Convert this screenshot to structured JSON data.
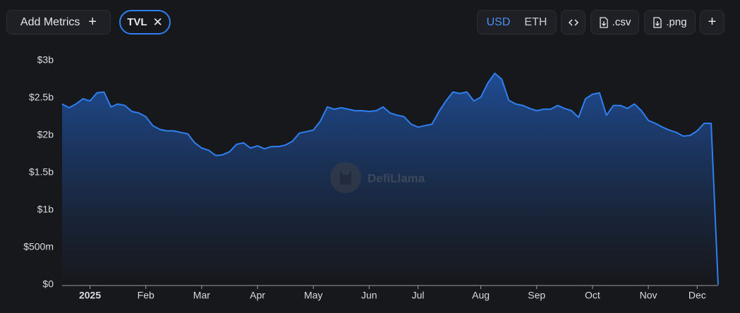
{
  "toolbar": {
    "add_metrics": "Add Metrics",
    "metric_chip": "TVL",
    "currencies": [
      "USD",
      "ETH"
    ],
    "active_currency": "USD",
    "csv": ".csv",
    "png": ".png"
  },
  "watermark": "DefiLlama",
  "chart_data": {
    "type": "area",
    "color": "#2f7ff0",
    "grid": false,
    "categories": [
      null,
      null,
      null,
      null,
      "2025",
      null,
      null,
      null,
      null,
      null,
      null,
      null,
      "Feb",
      null,
      null,
      null,
      null,
      null,
      null,
      null,
      "Mar",
      null,
      null,
      null,
      null,
      null,
      null,
      null,
      "Apr",
      null,
      null,
      null,
      null,
      null,
      null,
      null,
      "May",
      null,
      null,
      null,
      null,
      null,
      null,
      null,
      "Jun",
      null,
      null,
      null,
      null,
      null,
      null,
      "Jul",
      null,
      null,
      null,
      null,
      null,
      null,
      null,
      null,
      "Aug",
      null,
      null,
      null,
      null,
      null,
      null,
      null,
      "Sep",
      null,
      null,
      null,
      null,
      null,
      null,
      null,
      "Oct",
      null,
      null,
      null,
      null,
      null,
      null,
      null,
      "Nov",
      null,
      null,
      null,
      null,
      null,
      null,
      "Dec",
      null,
      null,
      null
    ],
    "values": [
      2.42,
      2.37,
      2.42,
      2.49,
      2.46,
      2.57,
      2.58,
      2.38,
      2.42,
      2.4,
      2.32,
      2.3,
      2.25,
      2.13,
      2.08,
      2.06,
      2.06,
      2.04,
      2.02,
      1.9,
      1.83,
      1.8,
      1.73,
      1.74,
      1.78,
      1.88,
      1.9,
      1.83,
      1.86,
      1.82,
      1.85,
      1.85,
      1.87,
      1.92,
      2.03,
      2.05,
      2.07,
      2.19,
      2.38,
      2.35,
      2.37,
      2.35,
      2.33,
      2.33,
      2.32,
      2.33,
      2.38,
      2.3,
      2.27,
      2.25,
      2.15,
      2.11,
      2.13,
      2.15,
      2.32,
      2.46,
      2.58,
      2.56,
      2.58,
      2.46,
      2.51,
      2.7,
      2.83,
      2.75,
      2.47,
      2.42,
      2.4,
      2.36,
      2.33,
      2.35,
      2.35,
      2.4,
      2.36,
      2.33,
      2.24,
      2.49,
      2.55,
      2.57,
      2.27,
      2.4,
      2.4,
      2.36,
      2.42,
      2.33,
      2.2,
      2.16,
      2.11,
      2.07,
      2.04,
      1.99,
      2.0,
      2.06,
      2.16,
      2.16,
      0
    ],
    "ylim": [
      0,
      3
    ],
    "yticks": [
      {
        "value": 0,
        "label": "$0"
      },
      {
        "value": 0.5,
        "label": "$500m"
      },
      {
        "value": 1,
        "label": "$1b"
      },
      {
        "value": 1.5,
        "label": "$1.5b"
      },
      {
        "value": 2,
        "label": "$2b"
      },
      {
        "value": 2.5,
        "label": "$2.5b"
      },
      {
        "value": 3,
        "label": "$3b"
      }
    ]
  }
}
